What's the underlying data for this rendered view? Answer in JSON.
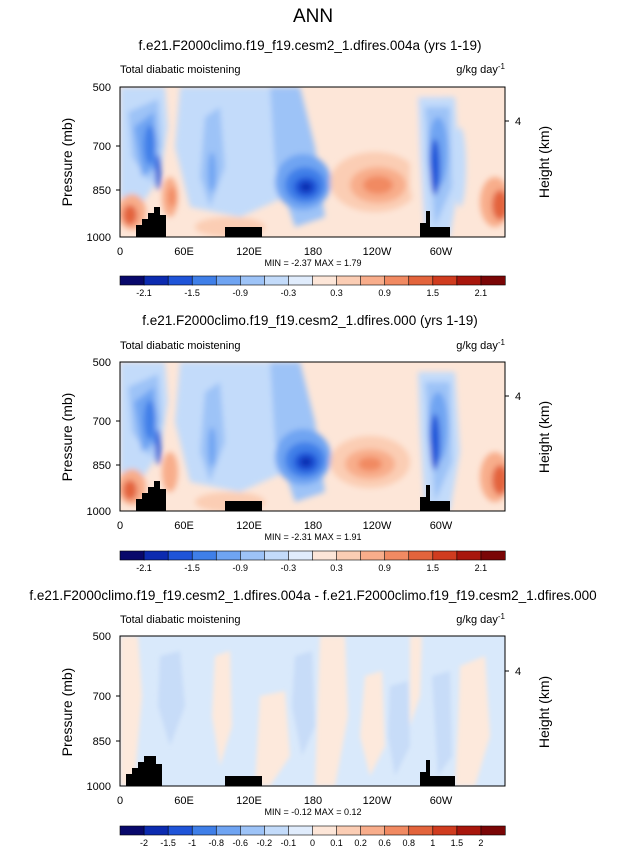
{
  "figure_title": "ANN",
  "panels": [
    {
      "title": "f.e21.F2000climo.f19_f19.cesm2_1.dfires.004a (yrs 1-19)",
      "left_label": "Total diabatic moistening",
      "right_label": "g/kg day",
      "right_label_sup": "-1",
      "stats": "MIN = -2.37  MAX = 1.79",
      "colorbar_labels": [
        "-2.1",
        "-1.5",
        "-0.9",
        "-0.3",
        "0.3",
        "0.9",
        "1.5",
        "2.1"
      ]
    },
    {
      "title": "f.e21.F2000climo.f19_f19.cesm2_1.dfires.000 (yrs 1-19)",
      "left_label": "Total diabatic moistening",
      "right_label": "g/kg day",
      "right_label_sup": "-1",
      "stats": "MIN = -2.31  MAX = 1.91",
      "colorbar_labels": [
        "-2.1",
        "-1.5",
        "-0.9",
        "-0.3",
        "0.3",
        "0.9",
        "1.5",
        "2.1"
      ]
    },
    {
      "title": "f.e21.F2000climo.f19_f19.cesm2_1.dfires.004a - f.e21.F2000climo.f19_f19.cesm2_1.dfires.000",
      "left_label": "Total diabatic moistening",
      "right_label": "g/kg day",
      "right_label_sup": "-1",
      "stats": "MIN = -0.12  MAX = 0.12",
      "colorbar_labels": [
        "-2",
        "-1.5",
        "-1",
        "-0.8",
        "-0.6",
        "-0.2",
        "-0.1",
        "0",
        "0.1",
        "0.2",
        "0.6",
        "0.8",
        "1",
        "1.5",
        "2"
      ]
    }
  ],
  "colors": {
    "palette_16": [
      "#08086b",
      "#0c2bb0",
      "#1f54d8",
      "#3f7fe8",
      "#6fa4f2",
      "#9dc3f7",
      "#c3dbfa",
      "#e0ecfc",
      "#fde6d8",
      "#fbcdb4",
      "#f8ad8b",
      "#f18a62",
      "#e3643c",
      "#d03c1f",
      "#a8160c",
      "#7a0606"
    ],
    "panel3_fill": "#d9e9fb",
    "panel3_weak_positive": "#fde9dc",
    "panel3_weak_negative": "#c7dcf8"
  },
  "chart_data": [
    {
      "type": "heatmap",
      "title": "f.e21.F2000climo.f19_f19.cesm2_1.dfires.004a (yrs 1-19)",
      "xlabel": "",
      "ylabel": "Pressure (mb)",
      "y2label": "Height (km)",
      "xticks": [
        "0",
        "60E",
        "120E",
        "180",
        "120W",
        "60W"
      ],
      "xlim": [
        0,
        360
      ],
      "yticks": [
        500,
        700,
        850,
        1000
      ],
      "ylim": [
        1000,
        500
      ],
      "y2ticks": [
        "4"
      ],
      "colorbar_levels": [
        -2.1,
        -1.8,
        -1.5,
        -1.2,
        -0.9,
        -0.6,
        -0.3,
        0,
        0.3,
        0.6,
        0.9,
        1.2,
        1.5,
        1.8,
        2.1
      ],
      "min": -2.37,
      "max": 1.79
    },
    {
      "type": "heatmap",
      "title": "f.e21.F2000climo.f19_f19.cesm2_1.dfires.000 (yrs 1-19)",
      "xlabel": "",
      "ylabel": "Pressure (mb)",
      "y2label": "Height (km)",
      "xticks": [
        "0",
        "60E",
        "120E",
        "180",
        "120W",
        "60W"
      ],
      "xlim": [
        0,
        360
      ],
      "yticks": [
        500,
        700,
        850,
        1000
      ],
      "ylim": [
        1000,
        500
      ],
      "y2ticks": [
        "4"
      ],
      "colorbar_levels": [
        -2.1,
        -1.8,
        -1.5,
        -1.2,
        -0.9,
        -0.6,
        -0.3,
        0,
        0.3,
        0.6,
        0.9,
        1.2,
        1.5,
        1.8,
        2.1
      ],
      "min": -2.31,
      "max": 1.91
    },
    {
      "type": "heatmap",
      "title": "f.e21.F2000climo.f19_f19.cesm2_1.dfires.004a - f.e21.F2000climo.f19_f19.cesm2_1.dfires.000",
      "xlabel": "",
      "ylabel": "Pressure (mb)",
      "y2label": "Height (km)",
      "xticks": [
        "0",
        "60E",
        "120E",
        "180",
        "120W",
        "60W"
      ],
      "xlim": [
        0,
        360
      ],
      "yticks": [
        500,
        700,
        850,
        1000
      ],
      "ylim": [
        1000,
        500
      ],
      "y2ticks": [
        "4"
      ],
      "colorbar_levels": [
        -2,
        -1.5,
        -1,
        -0.8,
        -0.6,
        -0.2,
        -0.1,
        0,
        0.1,
        0.2,
        0.6,
        0.8,
        1,
        1.5,
        2
      ],
      "min": -0.12,
      "max": 0.12
    }
  ]
}
